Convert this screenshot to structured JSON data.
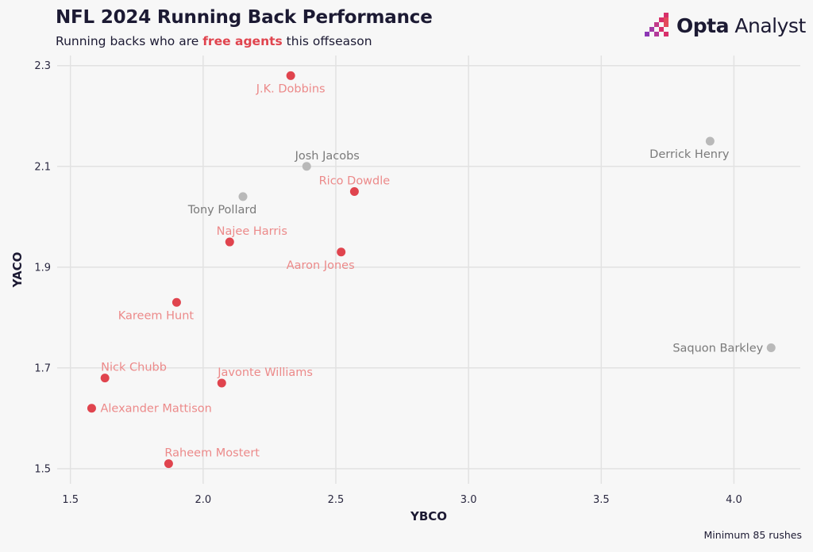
{
  "header": {
    "title": "NFL 2024 Running Back Performance",
    "subtitle_before": "Running backs who are ",
    "subtitle_highlight": "free agents",
    "subtitle_after": " this offseason",
    "brand_bold": "Opta",
    "brand_rest": " Analyst"
  },
  "footnote": "Minimum 85 rushes",
  "colors": {
    "free_agent": "#e0444e",
    "free_agent_label": "#ec8a8a",
    "other": "#b9b9b9",
    "other_label": "#7a7a7a",
    "grid": "#e2e2e2"
  },
  "chart_data": {
    "type": "scatter",
    "title": "NFL 2024 Running Back Performance",
    "subtitle": "Running backs who are free agents this offseason",
    "xlabel": "YBCO",
    "ylabel": "YACO",
    "xlim": [
      1.45,
      4.25
    ],
    "ylim": [
      1.47,
      2.32
    ],
    "xticks": [
      "1.5",
      "2.0",
      "2.5",
      "3.0",
      "3.5",
      "4.0"
    ],
    "yticks": [
      "1.5",
      "1.7",
      "1.9",
      "2.1",
      "2.3"
    ],
    "grid": true,
    "points": [
      {
        "name": "J.K. Dobbins",
        "x": 2.33,
        "y": 2.28,
        "free_agent": true,
        "label_pos": "below"
      },
      {
        "name": "Josh Jacobs",
        "x": 2.39,
        "y": 2.1,
        "free_agent": false,
        "label_pos": "above"
      },
      {
        "name": "Rico Dowdle",
        "x": 2.57,
        "y": 2.05,
        "free_agent": true,
        "label_pos": "above"
      },
      {
        "name": "Tony Pollard",
        "x": 2.15,
        "y": 2.04,
        "free_agent": false,
        "label_pos": "below-left"
      },
      {
        "name": "Najee Harris",
        "x": 2.1,
        "y": 1.95,
        "free_agent": true,
        "label_pos": "above"
      },
      {
        "name": "Aaron Jones",
        "x": 2.52,
        "y": 1.93,
        "free_agent": true,
        "label_pos": "below-left"
      },
      {
        "name": "Kareem Hunt",
        "x": 1.9,
        "y": 1.83,
        "free_agent": true,
        "label_pos": "below-left"
      },
      {
        "name": "Nick Chubb",
        "x": 1.63,
        "y": 1.68,
        "free_agent": true,
        "label_pos": "above-right"
      },
      {
        "name": "Javonte Williams",
        "x": 2.07,
        "y": 1.67,
        "free_agent": true,
        "label_pos": "above-right"
      },
      {
        "name": "Alexander Mattison",
        "x": 1.58,
        "y": 1.62,
        "free_agent": true,
        "label_pos": "right"
      },
      {
        "name": "Raheem Mostert",
        "x": 1.87,
        "y": 1.51,
        "free_agent": true,
        "label_pos": "above-right"
      },
      {
        "name": "Derrick Henry",
        "x": 3.91,
        "y": 2.15,
        "free_agent": false,
        "label_pos": "below-left"
      },
      {
        "name": "Saquon Barkley",
        "x": 4.14,
        "y": 1.74,
        "free_agent": false,
        "label_pos": "left"
      }
    ]
  }
}
